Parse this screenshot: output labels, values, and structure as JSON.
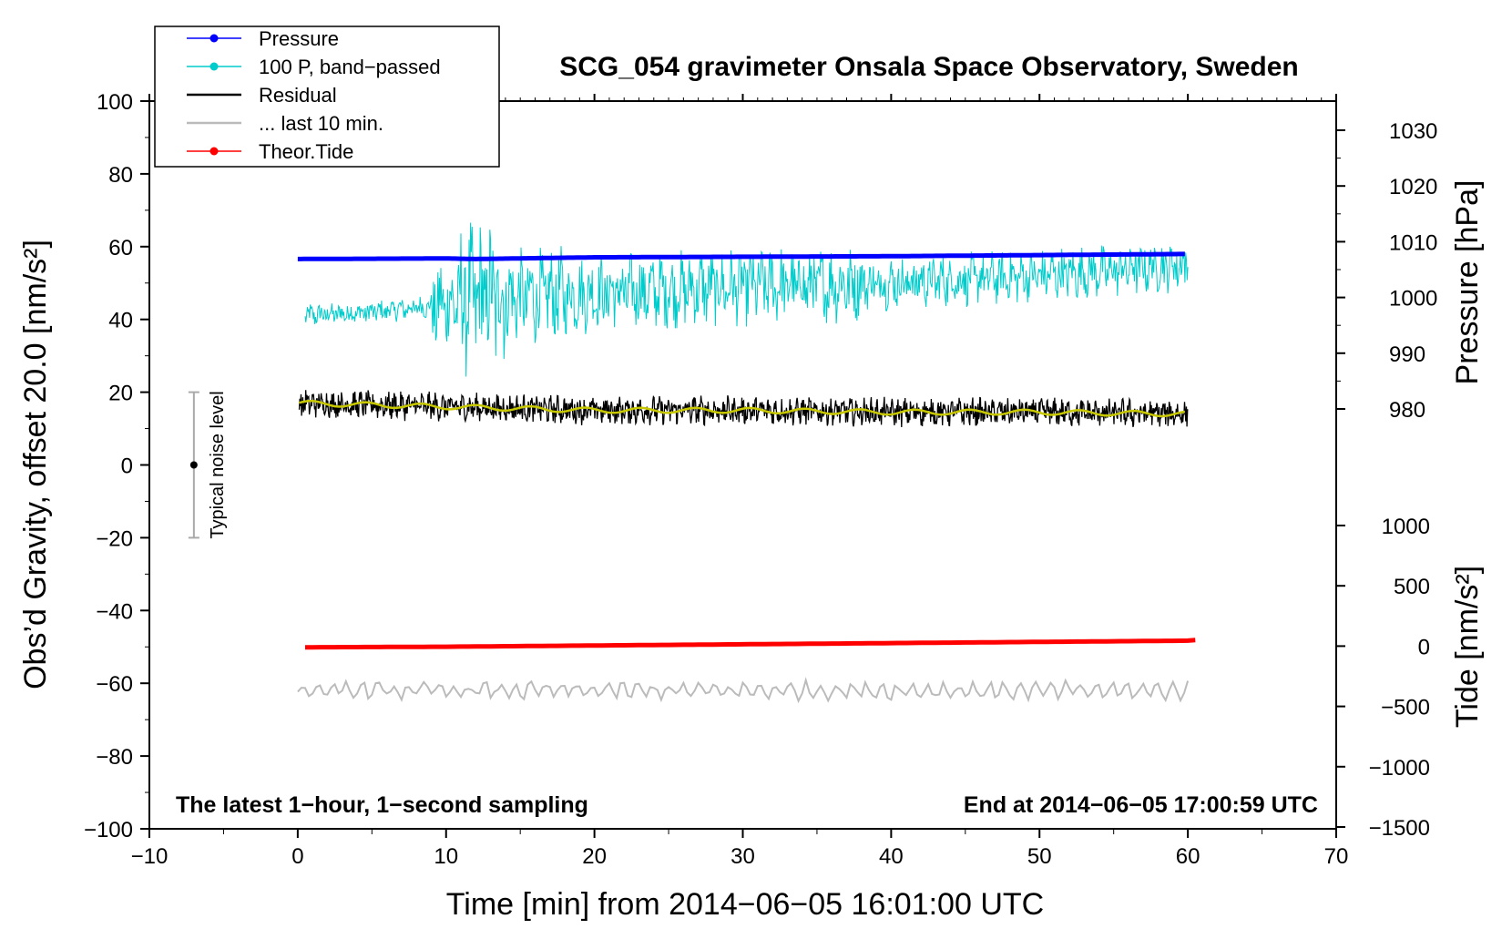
{
  "chart_data": {
    "type": "line",
    "title": "SCG_054 gravimeter Onsala Space Observatory, Sweden",
    "xlabel": "Time [min] from 2014−06−05 16:01:00 UTC",
    "ylabel": "Obs’d Gravity, offset 20.0 [nm/s²]",
    "ylabel_pressure": "Pressure [hPa]",
    "ylabel_tide": "Tide [nm/s²]",
    "xlim": [
      -10,
      70
    ],
    "ylim": [
      -100,
      100
    ],
    "pressure_lim": [
      980,
      1030
    ],
    "tide_lim": [
      -1500,
      1000
    ],
    "x_ticks": [
      "−10",
      "0",
      "10",
      "20",
      "30",
      "40",
      "50",
      "60",
      "70"
    ],
    "x_tick_values": [
      -10,
      0,
      10,
      20,
      30,
      40,
      50,
      60,
      70
    ],
    "y_ticks": [
      "100",
      "80",
      "60",
      "40",
      "20",
      "0",
      "−20",
      "−40",
      "−60",
      "−80",
      "−100"
    ],
    "y_tick_values": [
      100,
      80,
      60,
      40,
      20,
      0,
      -20,
      -40,
      -60,
      -80,
      -100
    ],
    "pressure_ticks": [
      "1030",
      "1020",
      "1010",
      "1000",
      "990",
      "980"
    ],
    "pressure_tick_values": [
      1030,
      1020,
      1010,
      1000,
      990,
      980
    ],
    "tide_ticks": [
      "1000",
      "500",
      "0",
      "−500",
      "−1000",
      "−1500"
    ],
    "tide_tick_values": [
      1000,
      500,
      0,
      -500,
      -1000,
      -1500
    ],
    "annotation_left": "The latest 1−hour, 1−second sampling",
    "annotation_right": "End at 2014−06−05 17:00:59 UTC",
    "noise_label": "Typical noise level",
    "noise_bar": {
      "x": -7,
      "center": 0,
      "low": -20,
      "high": 20
    },
    "legend": [
      {
        "label": "Pressure",
        "color": "#0000ff",
        "marker": true
      },
      {
        "label": "100 P, band−passed",
        "color": "#00cccc",
        "marker": true
      },
      {
        "label": "Residual",
        "color": "#000000",
        "marker": false
      },
      {
        "label": "... last 10 min.",
        "color": "#bbbbbb",
        "marker": false
      },
      {
        "label": "Theor.Tide",
        "color": "#ff0000",
        "marker": true
      }
    ],
    "series": [
      {
        "name": "Pressure",
        "color": "#0000ff",
        "axis": "pressure",
        "x": [
          0,
          10,
          12,
          20,
          30,
          40,
          50,
          60
        ],
        "values": [
          1006.9,
          1007.0,
          1006.9,
          1007.2,
          1007.3,
          1007.4,
          1007.6,
          1007.8
        ]
      },
      {
        "name": "100 P, band−passed",
        "color": "#00cccc",
        "axis": "left",
        "x": [
          0,
          5,
          10,
          12,
          15,
          20,
          30,
          40,
          50,
          60
        ],
        "values": [
          41,
          42,
          44,
          46,
          46,
          47,
          49,
          50,
          52,
          55
        ]
      },
      {
        "name": "Residual",
        "color": "#000000",
        "axis": "left",
        "x": [
          0,
          10,
          20,
          30,
          40,
          50,
          60
        ],
        "values": [
          17,
          16,
          15,
          15,
          14.5,
          14.5,
          14
        ]
      },
      {
        "name": "Residual smoothed",
        "color": "#c8c800",
        "axis": "left",
        "x": [
          0,
          10,
          20,
          30,
          40,
          50,
          60
        ],
        "values": [
          17,
          16,
          15,
          15,
          14.5,
          14.5,
          14
        ]
      },
      {
        "name": "... last 10 min.",
        "color": "#bbbbbb",
        "axis": "left",
        "x": [
          0,
          60
        ],
        "values": [
          -62,
          -62
        ]
      },
      {
        "name": "Theor.Tide",
        "color": "#ff0000",
        "axis": "tide",
        "x": [
          0,
          10,
          20,
          30,
          40,
          50,
          60,
          60.5
        ],
        "values": [
          -10,
          -5,
          5,
          15,
          25,
          35,
          45,
          50
        ]
      }
    ]
  }
}
